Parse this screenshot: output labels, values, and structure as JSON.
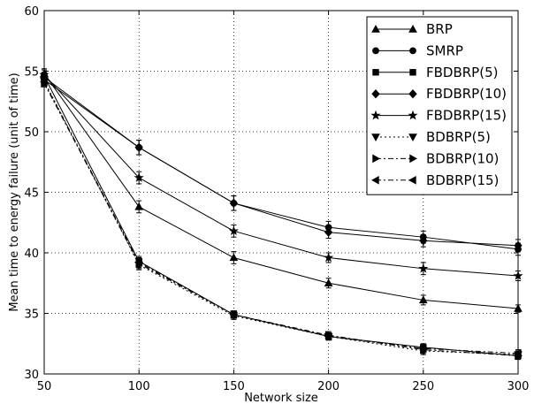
{
  "chart_data": {
    "type": "line",
    "title": "",
    "xlabel": "Network size",
    "ylabel": "Mean time to energy failure (unit of time)",
    "xlim": [
      50,
      300
    ],
    "ylim": [
      30,
      60
    ],
    "xticks": [
      50,
      100,
      150,
      200,
      250,
      300
    ],
    "yticks": [
      30,
      35,
      40,
      45,
      50,
      55,
      60
    ],
    "grid": true,
    "legend_position": "top-right",
    "x": [
      50,
      100,
      150,
      200,
      250,
      300
    ],
    "series": [
      {
        "name": "BRP",
        "marker": "triangle-up",
        "dash": "solid",
        "values": [
          54.8,
          43.8,
          39.6,
          37.5,
          36.1,
          35.4
        ],
        "err": [
          0.4,
          0.5,
          0.5,
          0.4,
          0.4,
          0.3
        ]
      },
      {
        "name": "SMRP",
        "marker": "circle",
        "dash": "solid",
        "values": [
          54.3,
          48.7,
          44.1,
          42.1,
          41.3,
          40.3
        ],
        "err": [
          0.4,
          0.6,
          0.6,
          0.5,
          0.5,
          0.5
        ]
      },
      {
        "name": "FBDBRP(5)",
        "marker": "square",
        "dash": "solid",
        "values": [
          54.6,
          39.3,
          34.9,
          33.1,
          32.2,
          31.5
        ],
        "err": [
          0.3,
          0.4,
          0.3,
          0.3,
          0.3,
          0.3
        ]
      },
      {
        "name": "FBDBRP(10)",
        "marker": "diamond",
        "dash": "solid",
        "values": [
          54.5,
          48.7,
          44.1,
          41.7,
          41.0,
          40.6
        ],
        "err": [
          0.4,
          0.6,
          0.6,
          0.5,
          0.5,
          0.5
        ]
      },
      {
        "name": "FBDBRP(15)",
        "marker": "star",
        "dash": "solid",
        "values": [
          54.7,
          46.2,
          41.8,
          39.6,
          38.7,
          38.1
        ],
        "err": [
          0.4,
          0.5,
          0.5,
          0.4,
          0.5,
          0.4
        ]
      },
      {
        "name": "BDBRP(5)",
        "marker": "triangle-down",
        "dash": "dotted",
        "values": [
          54.2,
          39.0,
          34.8,
          33.1,
          31.9,
          31.6
        ],
        "err": [
          0.3,
          0.4,
          0.3,
          0.3,
          0.3,
          0.3
        ]
      },
      {
        "name": "BDBRP(10)",
        "marker": "triangle-right",
        "dash": "dashdot",
        "values": [
          54.0,
          39.1,
          34.9,
          33.2,
          32.0,
          31.5
        ],
        "err": [
          0.3,
          0.4,
          0.3,
          0.3,
          0.3,
          0.3
        ]
      },
      {
        "name": "BDBRP(15)",
        "marker": "triangle-left",
        "dash": "dashdot",
        "values": [
          54.1,
          39.2,
          34.9,
          33.1,
          32.1,
          31.7
        ],
        "err": [
          0.3,
          0.4,
          0.3,
          0.3,
          0.3,
          0.3
        ]
      }
    ]
  }
}
